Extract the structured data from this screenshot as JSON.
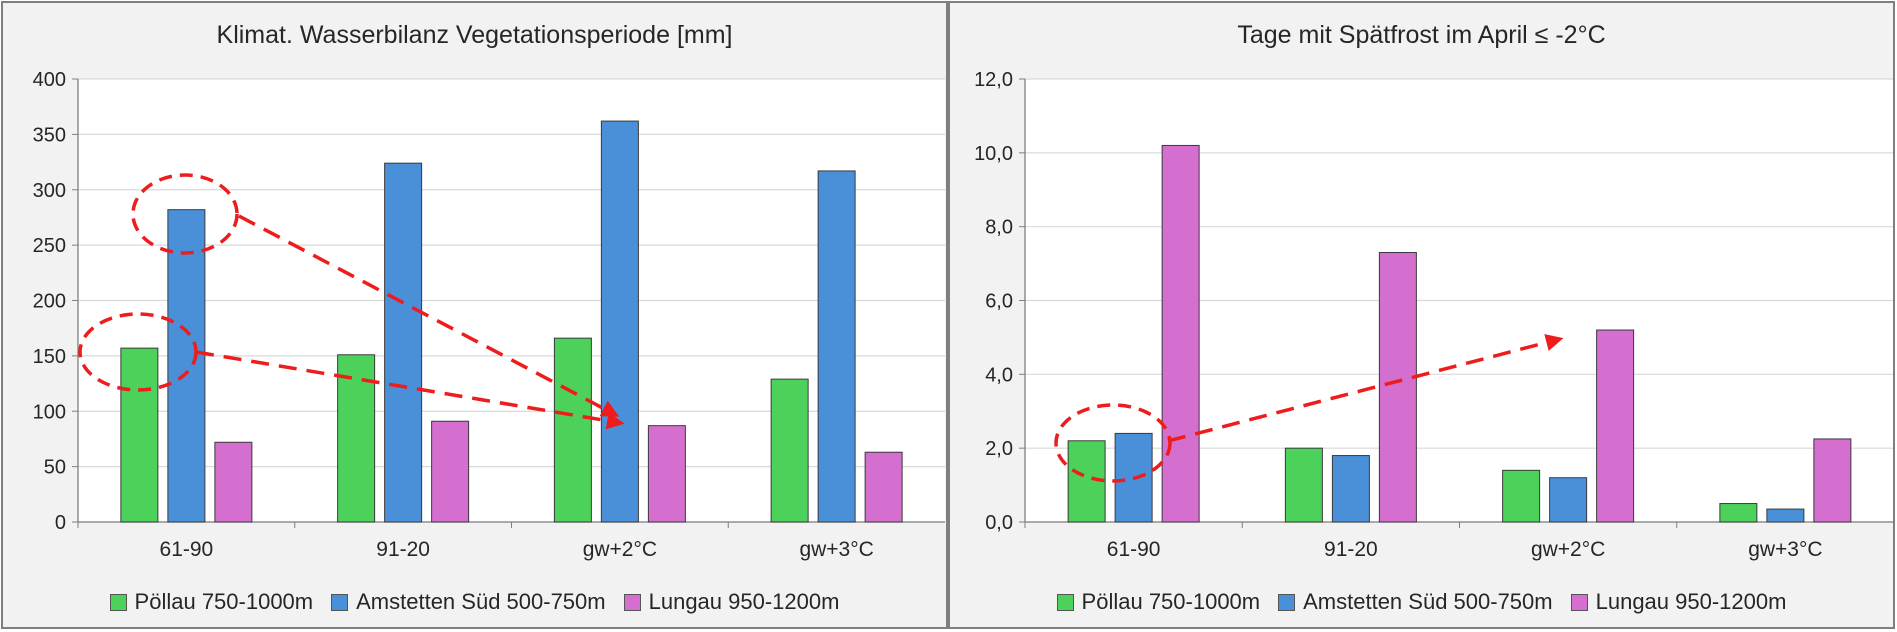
{
  "colors": {
    "green": "#4cd25a",
    "blue": "#4a90d9",
    "pink": "#d46fcf",
    "annotation": "#ee1c1c"
  },
  "legend": [
    {
      "label": "Pöllau 750-1000m",
      "color": "#4cd25a"
    },
    {
      "label": "Amstetten Süd 500-750m",
      "color": "#4a90d9"
    },
    {
      "label": "Lungau 950-1200m",
      "color": "#d46fcf"
    }
  ],
  "chart_data": [
    {
      "type": "bar",
      "title": "Klimat. Wasserbilanz Vegetationsperiode [mm]",
      "categories": [
        "61-90",
        "91-20",
        "gw+2°C",
        "gw+3°C"
      ],
      "series": [
        {
          "name": "Pöllau 750-1000m",
          "values": [
            157,
            151,
            166,
            129
          ]
        },
        {
          "name": "Amstetten Süd 500-750m",
          "values": [
            282,
            324,
            362,
            317
          ]
        },
        {
          "name": "Lungau 950-1200m",
          "values": [
            72,
            91,
            87,
            63
          ]
        }
      ],
      "ylim": [
        0,
        400
      ],
      "yticks": [
        0,
        50,
        100,
        150,
        200,
        250,
        300,
        350,
        400
      ],
      "grid": true,
      "legend_position": "bottom"
    },
    {
      "type": "bar",
      "title": "Tage mit Spätfrost im April ≤ -2°C",
      "categories": [
        "61-90",
        "91-20",
        "gw+2°C",
        "gw+3°C"
      ],
      "series": [
        {
          "name": "Pöllau 750-1000m",
          "values": [
            2.2,
            2.0,
            1.4,
            0.5
          ]
        },
        {
          "name": "Amstetten Süd 500-750m",
          "values": [
            2.4,
            1.8,
            1.2,
            0.35
          ]
        },
        {
          "name": "Lungau 950-1200m",
          "values": [
            10.2,
            7.3,
            5.2,
            2.25
          ]
        }
      ],
      "ylim": [
        0,
        12
      ],
      "yticks": [
        "0,0",
        "2,0",
        "4,0",
        "6,0",
        "8,0",
        "10,0",
        "12,0"
      ],
      "grid": true,
      "legend_position": "bottom"
    }
  ]
}
